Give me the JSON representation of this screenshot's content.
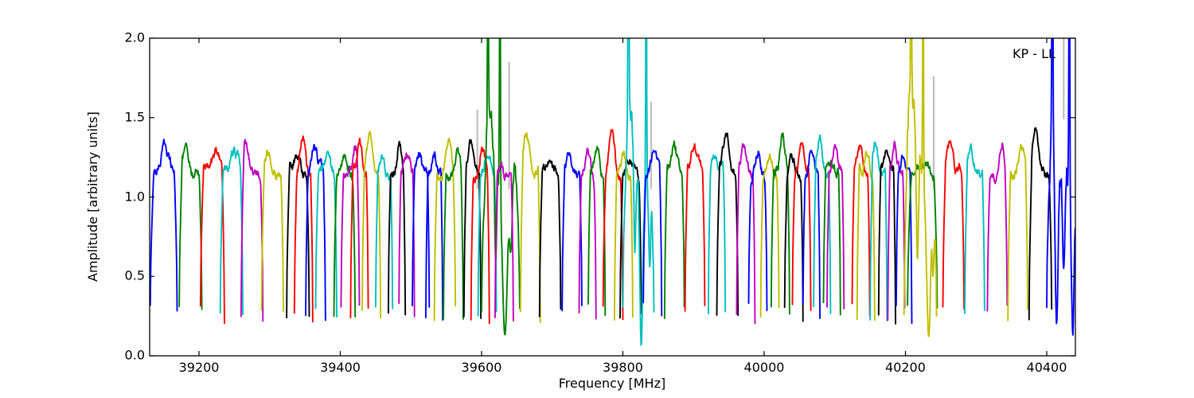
{
  "chart_data": {
    "type": "line",
    "title": "",
    "xlabel": "Frequency [MHz]",
    "ylabel": "Amplitude [arbitrary units]",
    "annotation": {
      "text": "KP - LL",
      "position": "top-right"
    },
    "xlim": [
      39130.1,
      40440.6
    ],
    "ylim": [
      0.0,
      2.0
    ],
    "xticks": [
      39200,
      39400,
      39600,
      39800,
      40000,
      40200,
      40400
    ],
    "yticks": [
      0.0,
      0.5,
      1.0,
      1.5,
      2.0
    ],
    "grid": false,
    "legend_position": "none",
    "line_width": 1.9,
    "colors": {
      "b": "#0000ff",
      "g": "#008000",
      "r": "#ff0000",
      "c": "#00bfbf",
      "m": "#bf00bf",
      "y": "#bfbf00",
      "k": "#000000",
      "gray": "#bfbfbf"
    },
    "description": "Overlapping bandpass spectra segments, amplitude plateau ~1.1-1.4, edges fall to ~0.25; noisy segments contain spikes clipped above 2.0 and deep dips.",
    "segments": [
      {
        "f": 39150,
        "w": 38,
        "c": "b",
        "p": 1.33,
        "tp": 0.55
      },
      {
        "f": 39188,
        "w": 32,
        "c": "g",
        "p": 1.31,
        "tp": 0.3
      },
      {
        "f": 39219,
        "w": 34,
        "c": "r",
        "p": 1.3,
        "tp": 0.7
      },
      {
        "f": 39246,
        "w": 32,
        "c": "c",
        "p": 1.29,
        "tp": 0.65
      },
      {
        "f": 39275,
        "w": 31,
        "c": "m",
        "p": 1.33,
        "tp": 0.2
      },
      {
        "f": 39304,
        "w": 31,
        "c": "y",
        "p": 1.29,
        "tp": 0.3
      },
      {
        "f": 39340,
        "w": 32,
        "c": "k",
        "p": 1.26,
        "tp": 0.45
      },
      {
        "f": 39348,
        "w": 26,
        "c": "r",
        "p": 1.37,
        "tp": 0.45
      },
      {
        "f": 39365,
        "w": 28,
        "c": "b",
        "p": 1.31,
        "tp": 0.45
      },
      {
        "f": 39380,
        "w": 30,
        "c": "c",
        "p": 1.24,
        "tp": 0.5
      },
      {
        "f": 39406,
        "w": 30,
        "c": "g",
        "p": 1.26,
        "tp": 0.5
      },
      {
        "f": 39414,
        "w": 26,
        "c": "m",
        "p": 1.31,
        "tp": 0.75
      },
      {
        "f": 39427,
        "w": 25,
        "c": "r",
        "p": 1.35,
        "tp": 0.5
      },
      {
        "f": 39444,
        "w": 26,
        "c": "y",
        "p": 1.38,
        "tp": 0.4
      },
      {
        "f": 39462,
        "w": 24,
        "c": "c",
        "p": 1.27,
        "tp": 0.4
      },
      {
        "f": 39480,
        "w": 24,
        "c": "k",
        "p": 1.35,
        "tp": 0.65
      },
      {
        "f": 39494,
        "w": 22,
        "c": "m",
        "p": 1.28,
        "tp": 0.55
      },
      {
        "f": 39514,
        "w": 24,
        "c": "b",
        "p": 1.29,
        "tp": 0.4
      },
      {
        "f": 39533,
        "w": 24,
        "c": "b",
        "p": 1.27,
        "tp": 0.5
      },
      {
        "f": 39548,
        "w": 30,
        "c": "y",
        "p": 1.33,
        "tp": 0.65
      },
      {
        "f": 39560,
        "w": 28,
        "c": "g",
        "p": 1.28,
        "tp": 0.7
      },
      {
        "f": 39587,
        "w": 24,
        "c": "k",
        "p": 1.33,
        "tp": 0.4
      },
      {
        "f": 39598,
        "w": 26,
        "c": "r",
        "p": 1.3,
        "tp": 0.6
      },
      {
        "f": 39608,
        "w": 26,
        "c": "c",
        "p": 1.3,
        "tp": 0.5
      },
      {
        "f": 39627,
        "w": 54,
        "c": "g",
        "p": 1.45,
        "tp": 0.15,
        "jit": 0.07,
        "spikes": [
          {
            "dt": -18,
            "v": 2.8
          },
          {
            "dt": -1,
            "v": 2.9
          }
        ],
        "dips": [
          {
            "dt": -7,
            "v": 0.6,
            "s": 1.5
          },
          {
            "dt": 6,
            "v": 0.13,
            "s": 3.5
          },
          {
            "dt": 14,
            "v": 0.65,
            "s": 2
          }
        ]
      },
      {
        "f": 39632,
        "w": 26,
        "c": "m",
        "p": 1.22,
        "tp": 0.3
      },
      {
        "f": 39669,
        "w": 28,
        "c": "y",
        "p": 1.39,
        "tp": 0.3
      },
      {
        "f": 39697,
        "w": 30,
        "c": "k",
        "p": 1.22,
        "tp": 0.4
      },
      {
        "f": 39728,
        "w": 28,
        "c": "b",
        "p": 1.31,
        "tp": 0.35
      },
      {
        "f": 39750,
        "w": 24,
        "c": "m",
        "p": 1.32,
        "tp": 0.5
      },
      {
        "f": 39763,
        "w": 24,
        "c": "g",
        "p": 1.3,
        "tp": 0.5
      },
      {
        "f": 39786,
        "w": 28,
        "c": "r",
        "p": 1.4,
        "tp": 0.45
      },
      {
        "f": 39801,
        "w": 26,
        "c": "y",
        "p": 1.26,
        "tp": 0.5
      },
      {
        "f": 39811,
        "w": 30,
        "c": "k",
        "p": 1.24,
        "tp": 0.4
      },
      {
        "f": 39822,
        "w": 44,
        "c": "c",
        "p": 1.6,
        "tp": 0.2,
        "jit": 0.09,
        "spikes": [
          {
            "dt": -14,
            "v": 2.8
          },
          {
            "dt": 11,
            "v": 2.9
          }
        ],
        "dips": [
          {
            "dt": -5,
            "v": 0.65,
            "s": 1.3
          },
          {
            "dt": 4,
            "v": 0.06,
            "s": 2.2
          },
          {
            "dt": 16,
            "v": 0.55,
            "s": 1.5
          }
        ]
      },
      {
        "f": 39842,
        "w": 26,
        "c": "b",
        "p": 1.3,
        "tp": 0.6
      },
      {
        "f": 39873,
        "w": 28,
        "c": "g",
        "p": 1.31,
        "tp": 0.5
      },
      {
        "f": 39902,
        "w": 28,
        "c": "r",
        "p": 1.33,
        "tp": 0.45
      },
      {
        "f": 39933,
        "w": 24,
        "c": "c",
        "p": 1.28,
        "tp": 0.4
      },
      {
        "f": 39948,
        "w": 30,
        "c": "k",
        "p": 1.42,
        "tp": 0.45
      },
      {
        "f": 39974,
        "w": 26,
        "c": "m",
        "p": 1.31,
        "tp": 0.35
      },
      {
        "f": 39991,
        "w": 26,
        "c": "b",
        "p": 1.29,
        "tp": 0.5
      },
      {
        "f": 40008,
        "w": 26,
        "c": "y",
        "p": 1.26,
        "tp": 0.5
      },
      {
        "f": 40023,
        "w": 26,
        "c": "g",
        "p": 1.38,
        "tp": 0.6
      },
      {
        "f": 40042,
        "w": 26,
        "c": "k",
        "p": 1.26,
        "tp": 0.4
      },
      {
        "f": 40053,
        "w": 26,
        "c": "r",
        "p": 1.32,
        "tp": 0.5
      },
      {
        "f": 40067,
        "w": 24,
        "c": "b",
        "p": 1.28,
        "tp": 0.5
      },
      {
        "f": 40082,
        "w": 24,
        "c": "c",
        "p": 1.37,
        "tp": 0.35
      },
      {
        "f": 40096,
        "w": 24,
        "c": "g",
        "p": 1.24,
        "tp": 0.5
      },
      {
        "f": 40101,
        "w": 24,
        "c": "m",
        "p": 1.35,
        "tp": 0.5
      },
      {
        "f": 40137,
        "w": 25,
        "c": "r",
        "p": 1.34,
        "tp": 0.4
      },
      {
        "f": 40144,
        "w": 25,
        "c": "y",
        "p": 1.28,
        "tp": 0.55
      },
      {
        "f": 40162,
        "w": 24,
        "c": "c",
        "p": 1.36,
        "tp": 0.3
      },
      {
        "f": 40174,
        "w": 24,
        "c": "k",
        "p": 1.29,
        "tp": 0.5
      },
      {
        "f": 40187,
        "w": 24,
        "c": "m",
        "p": 1.33,
        "tp": 0.4
      },
      {
        "f": 40198,
        "w": 22,
        "c": "b",
        "p": 1.27,
        "tp": 0.5
      },
      {
        "f": 40224,
        "w": 42,
        "c": "g",
        "p": 1.2,
        "tp": 0.5
      },
      {
        "f": 40221,
        "w": 46,
        "c": "y",
        "p": 1.5,
        "tp": 0.2,
        "jit": 0.08,
        "spikes": [
          {
            "dt": -13,
            "v": 2.8
          },
          {
            "dt": 4,
            "v": 2.8
          }
        ],
        "dips": [
          {
            "dt": -4,
            "v": 0.6,
            "s": 1.5
          },
          {
            "dt": 12,
            "v": 0.12,
            "s": 3
          },
          {
            "dt": 18,
            "v": 0.5,
            "s": 1.5
          }
        ]
      },
      {
        "f": 40268,
        "w": 30,
        "c": "r",
        "p": 1.33,
        "tp": 0.3
      },
      {
        "f": 40298,
        "w": 28,
        "c": "c",
        "p": 1.29,
        "tp": 0.3
      },
      {
        "f": 40330,
        "w": 28,
        "c": "m",
        "p": 1.34,
        "tp": 0.75
      },
      {
        "f": 40359,
        "w": 28,
        "c": "y",
        "p": 1.34,
        "tp": 0.7
      },
      {
        "f": 40391,
        "w": 32,
        "c": "k",
        "p": 1.43,
        "tp": 0.25
      },
      {
        "f": 40422,
        "w": 44,
        "c": "b",
        "p": 1.45,
        "tp": 0.1,
        "jit": 0.1,
        "spikes": [
          {
            "dt": -14,
            "v": 2.8
          },
          {
            "dt": 10,
            "v": 2.8
          }
        ],
        "dips": [
          {
            "dt": -8,
            "v": 0.2,
            "s": 2
          },
          {
            "dt": 2,
            "v": 0.55,
            "s": 1.5
          },
          {
            "dt": 15,
            "v": 0.13,
            "s": 2
          }
        ]
      }
    ],
    "gray_spikes": [
      {
        "f": 39594,
        "v0": 1.05,
        "v1": 1.55
      },
      {
        "f": 39639,
        "v0": 1.05,
        "v1": 1.85
      },
      {
        "f": 39840,
        "v0": 1.05,
        "v1": 1.6
      },
      {
        "f": 40240,
        "v0": 1.05,
        "v1": 1.76
      },
      {
        "f": 40424,
        "v0": 1.49,
        "v1": 2.3
      }
    ]
  }
}
